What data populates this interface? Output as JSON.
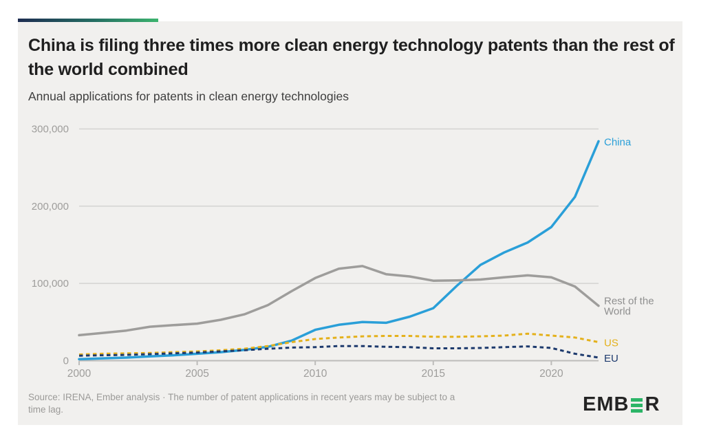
{
  "header": {
    "title": "China is filing three times more clean energy technology patents than the rest of the world combined",
    "subtitle": "Annual applications for patents in clean energy technologies"
  },
  "footer": {
    "source_line1": "Source: IRENA, Ember analysis · The number of patent applications in recent years may be subject to a",
    "source_line2": "time lag.",
    "logo": {
      "name": "EMBER",
      "letters_pre": "EMB",
      "letters_post": "R",
      "green": "#2cb567",
      "text_color": "#242424"
    }
  },
  "colors": {
    "card_bg": "#f1f0ee",
    "grid": "#d4d3d1",
    "axis": "#bdbcba",
    "axis_text": "#9e9d9b",
    "title_text": "#1f1f1f"
  },
  "chart_data": {
    "type": "line",
    "title": "Annual applications for patents in clean energy technologies",
    "xlabel": "",
    "ylabel": "",
    "grid": true,
    "legend_position": "line-end-labels-right",
    "x": [
      2000,
      2001,
      2002,
      2003,
      2004,
      2005,
      2006,
      2007,
      2008,
      2009,
      2010,
      2011,
      2012,
      2013,
      2014,
      2015,
      2016,
      2017,
      2018,
      2019,
      2020,
      2021,
      2022
    ],
    "xticks": [
      2000,
      2005,
      2010,
      2015,
      2020
    ],
    "ylim": [
      0,
      300000
    ],
    "yticks": [
      {
        "value": 0,
        "label": "0"
      },
      {
        "value": 100000,
        "label": "100,000"
      },
      {
        "value": 200000,
        "label": "200,000"
      },
      {
        "value": 300000,
        "label": "300,000"
      }
    ],
    "series": [
      {
        "name": "China",
        "label_lines": [
          "China"
        ],
        "color": "#2a9fd8",
        "style": "solid",
        "values": [
          2000,
          3000,
          4000,
          5500,
          7000,
          9000,
          11000,
          14000,
          18000,
          26000,
          40000,
          46500,
          50000,
          49000,
          57000,
          68000,
          97000,
          124000,
          140000,
          153000,
          173000,
          212000,
          284000
        ]
      },
      {
        "name": "Rest of the World",
        "label_lines": [
          "Rest of the",
          "World"
        ],
        "color": "#9e9d9b",
        "label_color": "#8f8f8f",
        "style": "solid",
        "values": [
          33000,
          36000,
          39000,
          44000,
          46000,
          48000,
          53000,
          60000,
          72000,
          90000,
          107000,
          119000,
          122500,
          112000,
          109000,
          103500,
          104000,
          105000,
          108000,
          110500,
          108000,
          96000,
          71000
        ]
      },
      {
        "name": "US",
        "label_lines": [
          "US"
        ],
        "color": "#e4b11c",
        "style": "dashed",
        "values": [
          8000,
          9000,
          9500,
          10000,
          11000,
          12000,
          13500,
          15500,
          19000,
          24000,
          28000,
          30000,
          31500,
          32000,
          32000,
          31000,
          31000,
          31500,
          32500,
          35000,
          32500,
          30000,
          24000
        ]
      },
      {
        "name": "EU",
        "label_lines": [
          "EU"
        ],
        "color": "#1d3a6d",
        "style": "dashed",
        "values": [
          6500,
          7000,
          7500,
          8500,
          9500,
          10500,
          12000,
          13500,
          15500,
          17000,
          17500,
          19000,
          19000,
          18000,
          17500,
          16000,
          16000,
          16500,
          17500,
          18500,
          16500,
          9000,
          4000
        ]
      }
    ]
  }
}
